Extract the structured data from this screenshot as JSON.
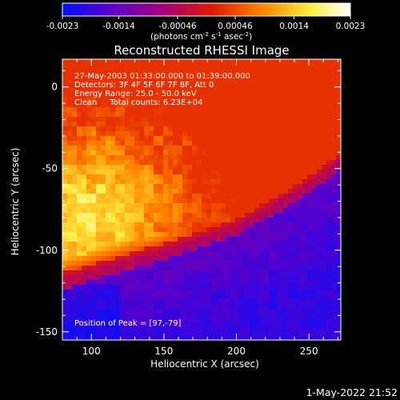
{
  "colorbar": {
    "ticks": [
      "-0.0023",
      "-0.0014",
      "-0.00046",
      "0.00046",
      "0.0014",
      "0.0023"
    ],
    "tick_values": [
      -0.0023,
      -0.0014,
      -0.00046,
      0.00046,
      0.0014,
      0.0023
    ],
    "range": [
      -0.0023,
      0.0023
    ],
    "units_prefix": "(photons cm",
    "units_sup1": "-2",
    "units_mid": " s",
    "units_sup2": "-1",
    "units_mid2": " asec",
    "units_sup3": "-2",
    "units_suffix": ")",
    "colormap": [
      "#0010ff",
      "#5a00c8",
      "#a00080",
      "#e01800",
      "#ff8800",
      "#ffee40",
      "#ffffff"
    ]
  },
  "chart_data": {
    "type": "heatmap",
    "title": "Reconstructed RHESSI Image",
    "xlabel": "Heliocentric X (arcsec)",
    "ylabel": "Heliocentric Y (arcsec)",
    "xlim": [
      80,
      272
    ],
    "ylim": [
      -155,
      17
    ],
    "x_ticks": [
      100,
      150,
      200,
      250
    ],
    "y_ticks": [
      0,
      -50,
      -100,
      -150
    ],
    "x_tick_labels": [
      "100",
      "150",
      "200",
      "250"
    ],
    "y_tick_labels": [
      "0",
      "-50",
      "-100",
      "-150"
    ],
    "peak": {
      "x": 97,
      "y": -79
    },
    "source_boundary": {
      "description_points": [
        [
          80,
          -118
        ],
        [
          150,
          -100
        ],
        [
          200,
          -85
        ],
        [
          240,
          -65
        ],
        [
          272,
          -45
        ]
      ]
    }
  },
  "info": {
    "line1": "27-May-2003 01:33:00.000 to 01:39:00.000",
    "line2": "Detectors: 3F 4F 5F 6F 7F 8F, Att 0",
    "line3": "Energy Range: 25.0 - 50.0 keV",
    "line4": "Clean     Total counts: 6.23E+04",
    "peak_label": "Position of Peak = [97,-79]"
  },
  "footer": {
    "date": "1-May-2022 21:52"
  }
}
